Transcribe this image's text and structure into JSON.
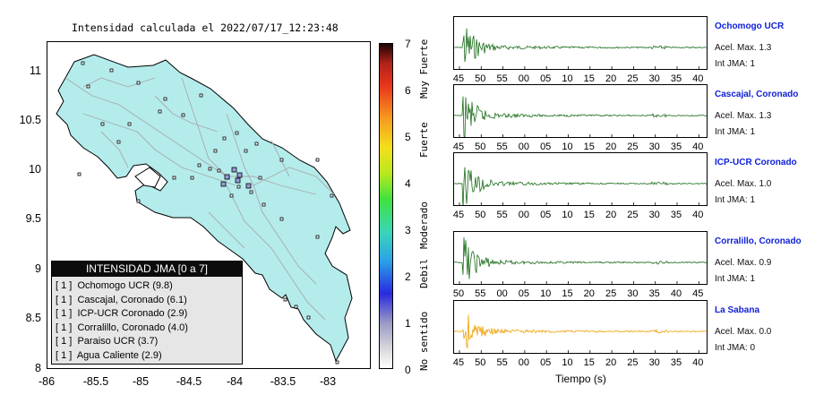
{
  "map": {
    "title": "Intensidad calculada el 2022/07/17_12:23:48",
    "yticks": [
      "11",
      "10.5",
      "10",
      "9.5",
      "9",
      "8.5",
      "8"
    ],
    "xticks": [
      "-86",
      "-85.5",
      "-85",
      "-84.5",
      "-84",
      "-83.5",
      "-83"
    ],
    "colors": {
      "land": "#b4ecec",
      "roads": "#a9a9a9",
      "border": "#000000"
    }
  },
  "colorbar": {
    "ticks": [
      "7",
      "6",
      "5",
      "4",
      "3",
      "2",
      "1",
      "0"
    ],
    "labels": [
      "Muy Fuerte",
      "Fuerte",
      "Moderado",
      "Debil",
      "No sentido"
    ]
  },
  "legend": {
    "header": "INTENSIDAD JMA [0 a 7]",
    "items": [
      "[ 1 ]  Ochomogo UCR (9.8)",
      "[ 1 ]  Cascajal, Coronado (6.1)",
      "[ 1 ]  ICP-UCR Coronado (2.9)",
      "[ 1 ]  Corralillo, Coronado (4.0)",
      "[ 1 ]  Paraiso UCR (3.7)",
      "[ 1 ]  Agua Caliente (2.9)"
    ]
  },
  "traces": [
    {
      "name": "Ochomogo UCR",
      "accel": "Acel. Max. 1.3",
      "jma": "Int JMA: 1",
      "color": "#1a6b1a",
      "ticks": [
        "45",
        "50",
        "55",
        "00",
        "05",
        "10",
        "15",
        "20",
        "25",
        "30",
        "35",
        "40"
      ]
    },
    {
      "name": "Cascajal, Coronado",
      "accel": "Acel. Max. 1.3",
      "jma": "Int JMA: 1",
      "color": "#1a6b1a",
      "ticks": [
        "45",
        "50",
        "55",
        "00",
        "05",
        "10",
        "15",
        "20",
        "25",
        "30",
        "35",
        "40"
      ]
    },
    {
      "name": "ICP-UCR Coronado",
      "accel": "Acel. Max. 1.0",
      "jma": "Int JMA: 1",
      "color": "#1a6b1a",
      "ticks": [
        "45",
        "50",
        "55",
        "00",
        "05",
        "10",
        "15",
        "20",
        "25",
        "30",
        "35",
        "40"
      ]
    },
    {
      "name": "Corralillo, Coronado",
      "accel": "Acel. Max. 0.9",
      "jma": "Int JMA: 1",
      "color": "#1a6b1a",
      "ticks": [
        "50",
        "55",
        "00",
        "05",
        "10",
        "15",
        "20",
        "25",
        "30",
        "35",
        "40",
        "45"
      ]
    },
    {
      "name": "La Sabana",
      "accel": "Acel. Max. 0.0",
      "jma": "Int JMA: 0",
      "color": "#f0a000",
      "ticks": [
        "45",
        "50",
        "55",
        "00",
        "05",
        "10",
        "15",
        "20",
        "25",
        "30",
        "35",
        "40"
      ]
    }
  ],
  "xaxis_title": "Tiempo (s)"
}
